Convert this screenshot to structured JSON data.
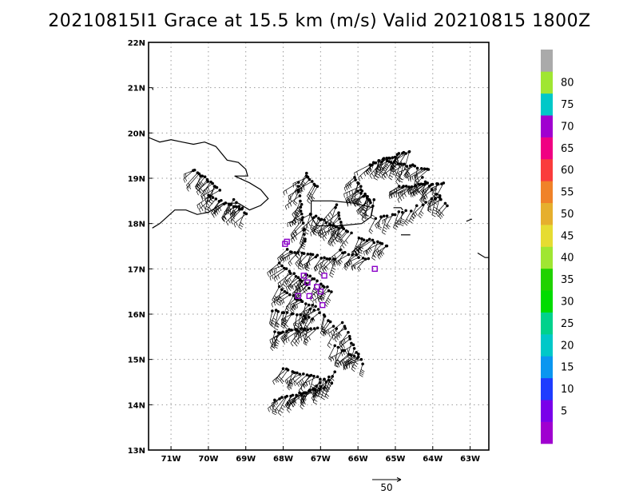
{
  "title": "20210815I1 Grace at 15.5 km (m/s) Valid 20210815 1800Z",
  "map": {
    "lon_range": [
      -71.6,
      -62.5
    ],
    "lat_range": [
      13,
      22
    ],
    "lon_ticks": [
      {
        "v": -71,
        "label": "71W"
      },
      {
        "v": -70,
        "label": "70W"
      },
      {
        "v": -69,
        "label": "69W"
      },
      {
        "v": -68,
        "label": "68W"
      },
      {
        "v": -67,
        "label": "67W"
      },
      {
        "v": -66,
        "label": "66W"
      },
      {
        "v": -65,
        "label": "65W"
      },
      {
        "v": -64,
        "label": "64W"
      },
      {
        "v": -63,
        "label": "63W"
      }
    ],
    "lat_ticks": [
      {
        "v": 22,
        "label": "22N"
      },
      {
        "v": 21,
        "label": "21N"
      },
      {
        "v": 20,
        "label": "20N"
      },
      {
        "v": 19,
        "label": "19N"
      },
      {
        "v": 18,
        "label": "18N"
      },
      {
        "v": 17,
        "label": "17N"
      },
      {
        "v": 16,
        "label": "16N"
      },
      {
        "v": 15,
        "label": "15N"
      },
      {
        "v": 14,
        "label": "14N"
      },
      {
        "v": 13,
        "label": "13N"
      }
    ],
    "grid": "dotted",
    "coastlines": [
      [
        [
          -71.6,
          19.9
        ],
        [
          -71.3,
          19.8
        ],
        [
          -71.0,
          19.85
        ],
        [
          -70.7,
          19.8
        ],
        [
          -70.4,
          19.75
        ],
        [
          -70.1,
          19.8
        ],
        [
          -69.8,
          19.7
        ],
        [
          -69.5,
          19.4
        ],
        [
          -69.2,
          19.35
        ],
        [
          -69.0,
          19.2
        ],
        [
          -68.95,
          19.05
        ],
        [
          -69.3,
          19.05
        ],
        [
          -68.9,
          18.9
        ],
        [
          -68.6,
          18.75
        ],
        [
          -68.4,
          18.55
        ],
        [
          -68.6,
          18.4
        ],
        [
          -68.9,
          18.3
        ],
        [
          -69.2,
          18.45
        ],
        [
          -69.6,
          18.45
        ],
        [
          -70.0,
          18.25
        ],
        [
          -70.3,
          18.2
        ],
        [
          -70.6,
          18.3
        ],
        [
          -70.9,
          18.3
        ],
        [
          -71.1,
          18.15
        ],
        [
          -71.3,
          18.0
        ],
        [
          -71.5,
          17.9
        ]
      ],
      [
        [
          -67.25,
          18.5
        ],
        [
          -66.7,
          18.5
        ],
        [
          -66.1,
          18.45
        ],
        [
          -65.6,
          18.35
        ],
        [
          -65.65,
          18.15
        ],
        [
          -65.9,
          18.0
        ],
        [
          -66.5,
          17.95
        ],
        [
          -67.1,
          17.95
        ],
        [
          -67.25,
          18.15
        ],
        [
          -67.25,
          18.5
        ]
      ],
      [
        [
          -65.05,
          18.35
        ],
        [
          -64.85,
          18.35
        ],
        [
          -64.8,
          18.3
        ]
      ],
      [
        [
          -64.85,
          17.75
        ],
        [
          -64.6,
          17.75
        ]
      ],
      [
        [
          -63.1,
          18.05
        ],
        [
          -62.95,
          18.1
        ]
      ],
      [
        [
          -62.8,
          17.35
        ],
        [
          -62.6,
          17.25
        ],
        [
          -62.5,
          17.25
        ]
      ],
      [
        [
          -71.5,
          21.0
        ],
        [
          -71.48,
          20.95
        ]
      ]
    ],
    "wind_observations": [
      {
        "segment": [
          [
            -70.4,
            19.2
          ],
          [
            -69.7,
            18.75
          ]
        ],
        "n": 15
      },
      {
        "segment": [
          [
            -70.0,
            18.6
          ],
          [
            -69.1,
            18.3
          ]
        ],
        "n": 14
      },
      {
        "segment": [
          [
            -69.3,
            18.5
          ],
          [
            -69.0,
            18.2
          ]
        ],
        "n": 6
      },
      {
        "segment": [
          [
            -67.4,
            19.1
          ],
          [
            -67.1,
            18.8
          ]
        ],
        "n": 8
      },
      {
        "segment": [
          [
            -67.6,
            18.9
          ],
          [
            -67.4,
            17.6
          ]
        ],
        "n": 18
      },
      {
        "segment": [
          [
            -67.3,
            18.2
          ],
          [
            -66.2,
            17.8
          ]
        ],
        "n": 20
      },
      {
        "segment": [
          [
            -66.6,
            18.4
          ],
          [
            -66.4,
            17.9
          ]
        ],
        "n": 8
      },
      {
        "segment": [
          [
            -66.1,
            19.0
          ],
          [
            -65.6,
            18.4
          ]
        ],
        "n": 14
      },
      {
        "segment": [
          [
            -66.0,
            18.7
          ],
          [
            -65.6,
            18.5
          ]
        ],
        "n": 6
      },
      {
        "segment": [
          [
            -65.7,
            19.3
          ],
          [
            -64.6,
            19.6
          ]
        ],
        "n": 20
      },
      {
        "segment": [
          [
            -65.3,
            19.4
          ],
          [
            -64.1,
            19.2
          ]
        ],
        "n": 18
      },
      {
        "segment": [
          [
            -64.9,
            18.8
          ],
          [
            -63.7,
            18.9
          ]
        ],
        "n": 18
      },
      {
        "segment": [
          [
            -64.3,
            19.0
          ],
          [
            -63.6,
            18.4
          ]
        ],
        "n": 10
      },
      {
        "segment": [
          [
            -65.5,
            18.1
          ],
          [
            -64.6,
            18.3
          ]
        ],
        "n": 10
      },
      {
        "segment": [
          [
            -66.0,
            17.7
          ],
          [
            -65.2,
            17.5
          ]
        ],
        "n": 12
      },
      {
        "segment": [
          [
            -66.5,
            17.4
          ],
          [
            -65.7,
            17.2
          ]
        ],
        "n": 10
      },
      {
        "segment": [
          [
            -67.9,
            17.4
          ],
          [
            -66.6,
            17.2
          ]
        ],
        "n": 18
      },
      {
        "segment": [
          [
            -68.1,
            17.1
          ],
          [
            -67.3,
            16.6
          ]
        ],
        "n": 14
      },
      {
        "segment": [
          [
            -67.4,
            16.9
          ],
          [
            -66.7,
            16.5
          ]
        ],
        "n": 12
      },
      {
        "segment": [
          [
            -68.1,
            16.6
          ],
          [
            -67.2,
            16.1
          ]
        ],
        "n": 14
      },
      {
        "segment": [
          [
            -68.3,
            16.1
          ],
          [
            -67.2,
            15.9
          ]
        ],
        "n": 14
      },
      {
        "segment": [
          [
            -67.2,
            16.2
          ],
          [
            -66.6,
            15.7
          ]
        ],
        "n": 10
      },
      {
        "segment": [
          [
            -68.2,
            15.6
          ],
          [
            -67.1,
            15.7
          ]
        ],
        "n": 16
      },
      {
        "segment": [
          [
            -66.4,
            15.8
          ],
          [
            -65.9,
            14.9
          ]
        ],
        "n": 14
      },
      {
        "segment": [
          [
            -66.6,
            15.3
          ],
          [
            -66.0,
            15.0
          ]
        ],
        "n": 8
      },
      {
        "segment": [
          [
            -68.0,
            14.8
          ],
          [
            -66.7,
            14.5
          ]
        ],
        "n": 18
      },
      {
        "segment": [
          [
            -68.2,
            14.1
          ],
          [
            -66.9,
            14.4
          ]
        ],
        "n": 18
      },
      {
        "segment": [
          [
            -67.5,
            14.2
          ],
          [
            -66.6,
            14.7
          ]
        ],
        "n": 10
      },
      {
        "segment": [
          [
            -64.4,
            18.4
          ],
          [
            -63.8,
            18.6
          ]
        ],
        "n": 6
      }
    ],
    "purple_marks": [
      [
        -67.95,
        17.55
      ],
      [
        -67.9,
        17.6
      ],
      [
        -67.35,
        16.7
      ],
      [
        -67.1,
        16.6
      ],
      [
        -67.45,
        16.85
      ],
      [
        -66.9,
        16.85
      ],
      [
        -67.6,
        16.4
      ],
      [
        -67.3,
        16.4
      ],
      [
        -67.0,
        16.5
      ],
      [
        -66.95,
        16.2
      ],
      [
        -65.55,
        17.0
      ]
    ]
  },
  "colorbar": {
    "levels": [
      "5",
      "10",
      "15",
      "20",
      "25",
      "30",
      "35",
      "40",
      "45",
      "50",
      "55",
      "60",
      "65",
      "70",
      "75",
      "80"
    ],
    "colors": [
      "#a000d0",
      "#7a00ea",
      "#1e3cff",
      "#0a96f0",
      "#00c8c8",
      "#00d28c",
      "#00dc00",
      "#20d200",
      "#a0e632",
      "#e6dc32",
      "#e6af2d",
      "#f08228",
      "#fa3c3c",
      "#f00082",
      "#a000d0",
      "#00c8c8",
      "#a0e632",
      "#aaaaaa"
    ]
  },
  "reference_vector": {
    "label": "50"
  }
}
